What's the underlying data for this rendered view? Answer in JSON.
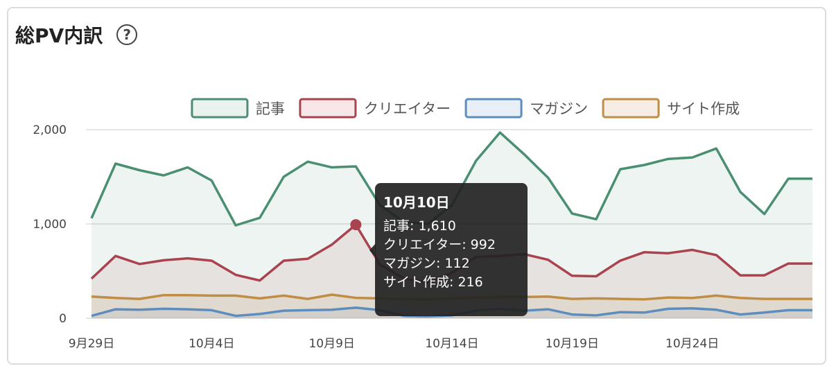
{
  "header": {
    "title": "総PV内訳",
    "help_label": "?"
  },
  "tooltip": {
    "date": "10月10日",
    "lines": [
      "記事: 1,610",
      "クリエイター: 992",
      "マガジン: 112",
      "サイト作成: 216"
    ]
  },
  "chart_data": {
    "type": "area",
    "title": "総PV内訳",
    "x": [
      "9月29日",
      "9月30日",
      "10月1日",
      "10月2日",
      "10月3日",
      "10月4日",
      "10月5日",
      "10月6日",
      "10月7日",
      "10月8日",
      "10月9日",
      "10月10日",
      "10月11日",
      "10月12日",
      "10月13日",
      "10月14日",
      "10月15日",
      "10月16日",
      "10月17日",
      "10月18日",
      "10月19日",
      "10月20日",
      "10月21日",
      "10月22日",
      "10月23日",
      "10月24日",
      "10月25日",
      "10月26日",
      "10月27日",
      "10月28日",
      "10月29日"
    ],
    "x_tick_labels": [
      "9月29日",
      "10月4日",
      "10月9日",
      "10月14日",
      "10月19日",
      "10月24日"
    ],
    "y_tick_labels": [
      "0",
      "1,000",
      "2,000"
    ],
    "ylim": [
      0,
      2000
    ],
    "grid": true,
    "legend_position": "top-center",
    "highlight_index": 11,
    "series": [
      {
        "name": "記事",
        "color": "#4a8f72",
        "fill": "#e9f2ee",
        "values": [
          1060,
          1640,
          1570,
          1515,
          1600,
          1460,
          985,
          1065,
          1500,
          1660,
          1600,
          1610,
          1200,
          1020,
          1000,
          1200,
          1670,
          1970,
          1740,
          1490,
          1110,
          1050,
          1580,
          1625,
          1690,
          1705,
          1800,
          1340,
          1105,
          1480,
          1480
        ]
      },
      {
        "name": "クリエイター",
        "color": "#a8434f",
        "fill": "#f7e7e8",
        "values": [
          420,
          660,
          575,
          615,
          635,
          610,
          460,
          400,
          610,
          630,
          780,
          992,
          570,
          420,
          380,
          480,
          650,
          660,
          680,
          620,
          450,
          445,
          610,
          700,
          690,
          725,
          670,
          455,
          455,
          580,
          580
        ]
      },
      {
        "name": "マガジン",
        "color": "#5d8dbd",
        "fill": "#e9eff6",
        "values": [
          25,
          95,
          90,
          100,
          95,
          85,
          25,
          45,
          80,
          85,
          90,
          112,
          85,
          25,
          20,
          30,
          80,
          100,
          80,
          95,
          40,
          30,
          65,
          60,
          100,
          105,
          90,
          40,
          60,
          85,
          85
        ]
      },
      {
        "name": "サイト作成",
        "color": "#bf8d45",
        "fill": "#f6eee5",
        "values": [
          230,
          215,
          205,
          245,
          245,
          240,
          240,
          210,
          240,
          205,
          250,
          216,
          210,
          205,
          200,
          210,
          220,
          225,
          225,
          230,
          205,
          210,
          205,
          200,
          220,
          215,
          240,
          215,
          205,
          205,
          205
        ]
      }
    ]
  }
}
